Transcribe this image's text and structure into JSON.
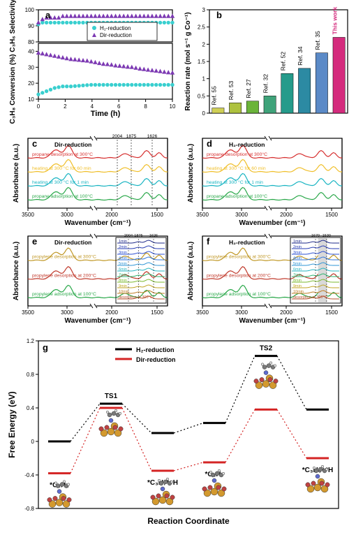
{
  "panels": {
    "a": {
      "label": "a",
      "series": [
        {
          "name": "H2",
          "marker": "circle",
          "color": "#39cfcf",
          "label": "H₂-reduction"
        },
        {
          "name": "Dir",
          "marker": "triangle",
          "color": "#7d3ab3",
          "label": "Dir-reduction"
        }
      ],
      "top": {
        "ylabel": "C₃H₆ Selectivity (%)",
        "ylim": [
          80,
          100
        ],
        "yticks": [
          80,
          90,
          100
        ],
        "h2": [
          91,
          92,
          92,
          92,
          92,
          92,
          92,
          92,
          92,
          92,
          92,
          92,
          92,
          92,
          92,
          92,
          92,
          92,
          92,
          92,
          92,
          92,
          92,
          92,
          92,
          92,
          92,
          92,
          92,
          92,
          92,
          92,
          92,
          92
        ],
        "dir": [
          92,
          94,
          95,
          95,
          95,
          95,
          96,
          96,
          96,
          96,
          96,
          96,
          96,
          96,
          96,
          96,
          96,
          96,
          96,
          96,
          96,
          96,
          96,
          96,
          96,
          96,
          96,
          96,
          96,
          96,
          96,
          96,
          96,
          96
        ]
      },
      "bottom": {
        "ylabel": "C₃H₈ Conversion (%)",
        "ylim": [
          10,
          45
        ],
        "yticks": [
          10,
          20,
          30,
          40
        ],
        "h2": [
          13,
          14,
          15,
          16,
          17,
          17.5,
          18,
          18,
          18,
          18.2,
          18.4,
          18.6,
          18.8,
          19,
          19,
          19,
          19,
          19,
          19,
          19,
          19,
          19,
          19,
          19,
          19,
          19,
          19,
          19,
          19,
          19,
          19,
          19,
          19,
          19
        ],
        "dir": [
          39,
          38.5,
          38,
          37.5,
          37,
          36.5,
          36,
          35.5,
          35,
          34.8,
          34.5,
          34.2,
          34,
          33.5,
          33,
          32.5,
          32,
          31.8,
          31.5,
          31,
          30.8,
          30.5,
          30.2,
          30,
          29.5,
          29,
          28.7,
          28.3,
          28,
          27.7,
          27.4,
          27,
          26.7,
          26.5
        ]
      },
      "xlabel": "Time (h)",
      "xlim": [
        0,
        10
      ],
      "xticks": [
        0,
        2,
        4,
        6,
        8,
        10
      ]
    },
    "b": {
      "label": "b",
      "ylabel": "Reaction rate (mol s⁻¹ g Co⁻¹)",
      "ylim": [
        0,
        3.0
      ],
      "yticks": [
        0,
        0.5,
        1.0,
        1.5,
        2.0,
        2.5,
        3.0
      ],
      "bars": [
        {
          "label": "Ref. 55",
          "value": 0.15,
          "color": "#cfcf55"
        },
        {
          "label": "Ref. 53",
          "value": 0.3,
          "color": "#aec23e"
        },
        {
          "label": "Ref. 27",
          "value": 0.35,
          "color": "#6bb43a"
        },
        {
          "label": "Ref. 32",
          "value": 0.5,
          "color": "#3fa37a"
        },
        {
          "label": "Ref. 52",
          "value": 1.15,
          "color": "#259b8b"
        },
        {
          "label": "Ref. 34",
          "value": 1.3,
          "color": "#2c8aa3"
        },
        {
          "label": "Ref. 35",
          "value": 1.75,
          "color": "#5b8ac7"
        },
        {
          "label": "This work",
          "value": 2.2,
          "color": "#d42b7d"
        }
      ],
      "highlight_color": "#d42b7d"
    },
    "c": {
      "label": "c",
      "title": "Dir-reduction",
      "xlabel": "Wavenumber (cm⁻¹)",
      "ylabel": "Absorbance (a.u.)",
      "xbreak": [
        2800,
        2100
      ],
      "x_full": [
        3500,
        1400
      ],
      "xticks_left": [
        3500,
        3000
      ],
      "xticks_right": [
        2000,
        1500
      ],
      "peaks": [
        "2004",
        "1875",
        "1626"
      ],
      "traces": [
        {
          "label": "propane adsorption at 100°C",
          "color": "#2aa84a"
        },
        {
          "label": "heating at 300 °C for 1 min",
          "color": "#18b4c2"
        },
        {
          "label": "heating at 300 °C for 60 min",
          "color": "#f0bf2a"
        },
        {
          "label": "propane desorption at 300°C",
          "color": "#d62e2e"
        }
      ]
    },
    "d": {
      "label": "d",
      "title": "H₂-reduction",
      "xlabel": "Wavenumber (cm⁻¹)",
      "ylabel": "Absorbance (a.u.)",
      "xbreak": [
        2800,
        2100
      ],
      "x_full": [
        3500,
        1400
      ],
      "xticks_left": [
        3500,
        3000
      ],
      "xticks_right": [
        2000,
        1500
      ],
      "traces": [
        {
          "label": "propane adsorption at 100°C",
          "color": "#2aa84a"
        },
        {
          "label": "heating at 300 °C for 1 min",
          "color": "#18b4c2"
        },
        {
          "label": "heating at 300 °C for 60 min",
          "color": "#f0bf2a"
        },
        {
          "label": "propane desorption at 300°C",
          "color": "#d62e2e"
        }
      ]
    },
    "e": {
      "label": "e",
      "title": "Dir-reduction",
      "xlabel": "Wavenumber (cm⁻¹)",
      "ylabel": "Absorbance (a.u.)",
      "traces": [
        {
          "label": "propylene adsorption at 100°C",
          "color": "#2aa84a"
        },
        {
          "label": "propylene desorption at 200°C",
          "color": "#c0392b"
        },
        {
          "label": "propylene desorption at 300°C",
          "color": "#c09826"
        }
      ],
      "inset": {
        "peaks": [
          "2004",
          "1875",
          "1626"
        ],
        "mins": [
          "1min",
          "2min",
          "3min",
          "4min",
          "5min",
          "6min",
          "7min",
          "8min",
          "9min",
          "10min",
          "desorption at 300°C"
        ],
        "colors": [
          "#1e2a8a",
          "#263bb3",
          "#2b4fd1",
          "#2f75d9",
          "#2e95d6",
          "#28b4c1",
          "#29b26b",
          "#7bb82e",
          "#c0a423",
          "#be7a20",
          "#b6512e"
        ]
      }
    },
    "f": {
      "label": "f",
      "title": "H₂-reduction",
      "xlabel": "Wavenumber (cm⁻¹)",
      "ylabel": "Absorbance (a.u.)",
      "traces": [
        {
          "label": "propylene adsorption at 100°C",
          "color": "#2aa84a"
        },
        {
          "label": "propylene desorption at 200°C",
          "color": "#c0392b"
        },
        {
          "label": "propylene desorption at 300°C",
          "color": "#c09826"
        }
      ],
      "inset": {
        "peaks": [
          "1670",
          "1530"
        ],
        "mins": [
          "1min",
          "2min",
          "3min",
          "4min",
          "5min",
          "6min",
          "7min",
          "8min",
          "9min",
          "10min",
          "desorption at 300°C"
        ],
        "colors": [
          "#1e2a8a",
          "#263bb3",
          "#2b4fd1",
          "#2f75d9",
          "#2e95d6",
          "#28b4c1",
          "#29b26b",
          "#7bb82e",
          "#c0a423",
          "#be7a20",
          "#b6512e"
        ]
      }
    },
    "g": {
      "label": "g",
      "xlabel": "Reaction Coordinate",
      "ylabel": "Free Energy (eV)",
      "ylim": [
        -0.8,
        1.2
      ],
      "yticks": [
        -0.8,
        -0.4,
        0.0,
        0.4,
        0.8,
        1.2
      ],
      "states": [
        "*C₃H₈",
        "TS1",
        "*C₃H₇*+H",
        "*C₃H₇",
        "TS2",
        "*C₃H₆+*H"
      ],
      "series": [
        {
          "name": "H₂-reduction",
          "color": "#000000",
          "energies": [
            0.0,
            0.45,
            0.1,
            0.22,
            1.02,
            0.38
          ]
        },
        {
          "name": "Dir-reduction",
          "color": "#d42424",
          "energies": [
            -0.38,
            0.4,
            -0.35,
            -0.25,
            0.38,
            -0.2
          ]
        }
      ],
      "mol_colors": {
        "Co": "#d3992e",
        "O": "#c04242",
        "N": "#5e6bd1",
        "C": "#7a7a7a",
        "H": "#e6e6e6"
      }
    }
  },
  "style": {
    "bg": "#ffffff",
    "axis_color": "#000000",
    "axis_width": 1.2,
    "font_size_label": 11,
    "font_size_tick": 8,
    "font_size_small": 7,
    "panel_label_weight": "bold",
    "panel_label_size": 13
  }
}
